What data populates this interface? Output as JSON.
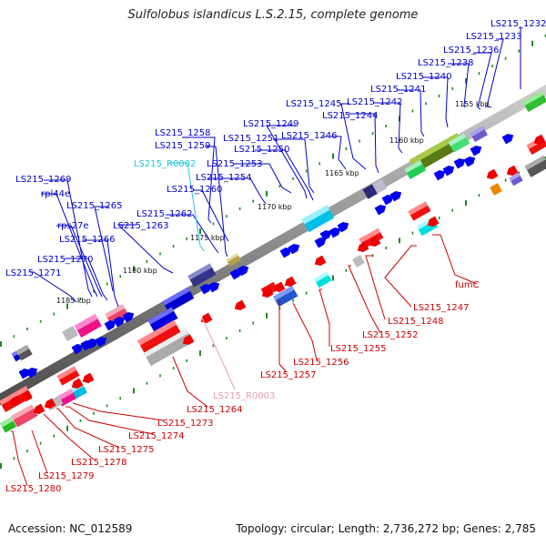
{
  "title": "Sulfolobus islandicus L.S.2.15, complete genome",
  "footer": {
    "accession": "Accession: NC_012589",
    "topology": "Topology: circular; Length: 2,736,272 bp; Genes: 2,785"
  },
  "colors": {
    "axis": "#666666",
    "tick": "#228822",
    "forward_genes": "#0000dd",
    "reverse_genes": "#ee0000",
    "forward_labels": "#0000cc",
    "reverse_labels": "#cc0000",
    "rna_forward": "#22c4dd",
    "rna_reverse": "#e89ab8"
  },
  "axis_ticks": [
    "1155 kbp",
    "1160 kbp",
    "1165 kbp",
    "1170 kbp",
    "1175 kbp",
    "1180 kbp",
    "1185 kbp"
  ],
  "gene_labels": {
    "forward": [
      "LS215_1232",
      "LS215_1233",
      "LS215_1236",
      "LS215_1238",
      "LS215_1240",
      "LS215_1241",
      "LS215_1242",
      "LS215_1244",
      "LS215_1245",
      "LS215_1246",
      "LS215_1249",
      "LS215_1250",
      "LS215_1251",
      "LS215_1253",
      "LS215_1254",
      "LS215_1258",
      "LS215_1259",
      "LS215_1260",
      "LS215_1262",
      "LS215_1263",
      "LS215_1265",
      "LS215_1266",
      "LS215_1269",
      "rpl44e",
      "rps27e",
      "LS215_1270",
      "LS215_1271"
    ],
    "rna_forward": [
      "LS215_R0002"
    ],
    "reverse": [
      "fumC",
      "LS215_1247",
      "LS215_1248",
      "LS215_1252",
      "LS215_1255",
      "LS215_1256",
      "LS215_1257",
      "LS215_1264",
      "LS215_1273",
      "LS215_1274",
      "LS215_1275",
      "LS215_1278",
      "LS215_1279",
      "LS215_1280"
    ],
    "rna_reverse": [
      "LS215_R0003"
    ]
  }
}
